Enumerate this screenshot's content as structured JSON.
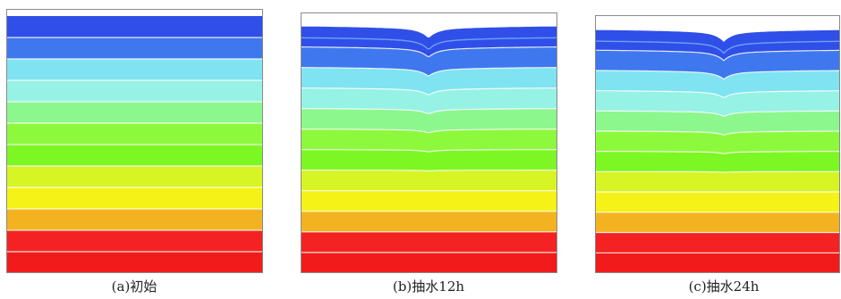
{
  "panels": [
    {
      "caption": "(a)初始",
      "drawdown": 0
    },
    {
      "caption": "(b)抽水12h",
      "drawdown": 1
    },
    {
      "caption": "(c)抽水24h",
      "drawdown": 1
    }
  ],
  "layers": [
    {
      "color": "#2f4fe8"
    },
    {
      "color": "#3f78ee"
    },
    {
      "color": "#7fe3f2"
    },
    {
      "color": "#96f2e4"
    },
    {
      "color": "#8cf78d"
    },
    {
      "color": "#8df93d"
    },
    {
      "color": "#7cf723"
    },
    {
      "color": "#d7f424"
    },
    {
      "color": "#f4f216"
    },
    {
      "color": "#f3b321"
    },
    {
      "color": "#f42222"
    },
    {
      "color": "#f21b1b"
    }
  ],
  "separator_color": "#ffffff",
  "frame_color": "#8a8a8a"
}
